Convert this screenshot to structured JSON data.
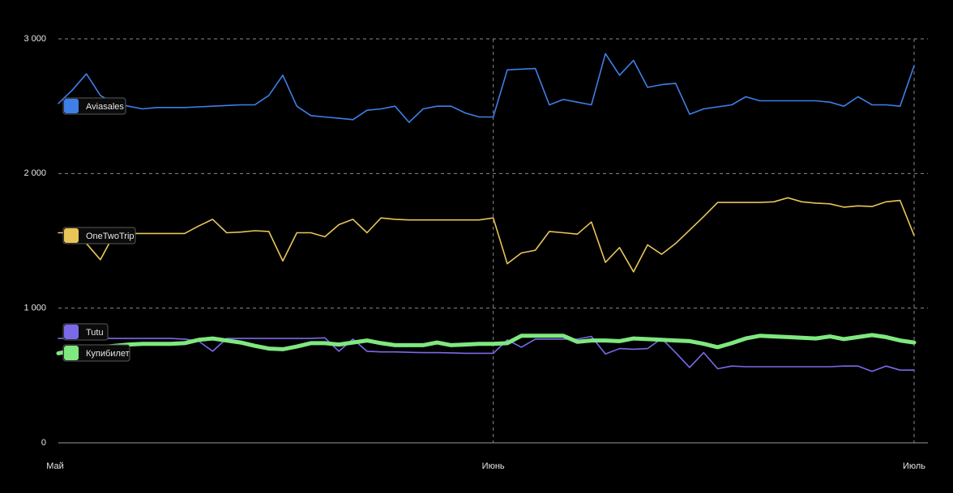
{
  "chart_data": {
    "type": "line",
    "x": [
      0,
      1,
      2,
      3,
      4,
      5,
      6,
      7,
      8,
      9,
      10,
      11,
      12,
      13,
      14,
      15,
      16,
      17,
      18,
      19,
      20,
      21,
      22,
      23,
      24,
      25,
      26,
      27,
      28,
      29,
      30,
      31,
      32,
      33,
      34,
      35,
      36,
      37,
      38,
      39,
      40,
      41,
      42,
      43,
      44,
      45,
      46,
      47,
      48,
      49,
      50,
      51,
      52,
      53,
      54,
      55,
      56,
      57,
      58,
      59,
      60,
      61
    ],
    "xlim": [
      0,
      61
    ],
    "xticks": [
      {
        "value": 0,
        "label": "Май"
      },
      {
        "value": 31,
        "label": "Июнь"
      },
      {
        "value": 61,
        "label": "Июль"
      }
    ],
    "ylim": [
      0,
      3000
    ],
    "yticks": [
      {
        "value": 0,
        "label": "0"
      },
      {
        "value": 1000,
        "label": "1 000"
      },
      {
        "value": 2000,
        "label": "2 000"
      },
      {
        "value": 3000,
        "label": "3 000"
      }
    ],
    "grid": true,
    "series": [
      {
        "name": "Aviasales",
        "color": "#3f7fe8",
        "values": [
          2520,
          2620,
          2740,
          2580,
          2520,
          2500,
          2480,
          2490,
          2490,
          2490,
          2495,
          2500,
          2505,
          2510,
          2510,
          2580,
          2730,
          2500,
          2430,
          2420,
          2410,
          2400,
          2470,
          2480,
          2500,
          2380,
          2480,
          2500,
          2500,
          2450,
          2420,
          2420,
          2770,
          2775,
          2780,
          2510,
          2550,
          2530,
          2510,
          2890,
          2730,
          2840,
          2640,
          2660,
          2670,
          2440,
          2480,
          2495,
          2510,
          2570,
          2540,
          2540,
          2540,
          2540,
          2540,
          2530,
          2500,
          2570,
          2510,
          2510,
          2500,
          2800
        ]
      },
      {
        "name": "OneTwoTrip",
        "color": "#e8c557",
        "values": [
          1560,
          1560,
          1480,
          1360,
          1555,
          1555,
          1555,
          1555,
          1555,
          1555,
          1610,
          1660,
          1560,
          1565,
          1575,
          1570,
          1350,
          1560,
          1560,
          1530,
          1620,
          1660,
          1560,
          1670,
          1660,
          1655,
          1655,
          1655,
          1655,
          1655,
          1655,
          1670,
          1330,
          1410,
          1430,
          1570,
          1560,
          1550,
          1640,
          1340,
          1450,
          1270,
          1470,
          1400,
          1480,
          1580,
          1680,
          1785,
          1785,
          1785,
          1785,
          1790,
          1820,
          1790,
          1780,
          1775,
          1750,
          1760,
          1755,
          1790,
          1800,
          1540
        ]
      },
      {
        "name": "Tutu",
        "color": "#7a6ae8",
        "values": [
          775,
          775,
          775,
          775,
          775,
          775,
          775,
          775,
          775,
          770,
          755,
          680,
          775,
          775,
          775,
          775,
          775,
          775,
          775,
          780,
          680,
          770,
          680,
          675,
          675,
          672,
          670,
          670,
          668,
          665,
          665,
          665,
          765,
          710,
          770,
          770,
          770,
          770,
          790,
          660,
          700,
          695,
          700,
          775,
          670,
          560,
          670,
          550,
          570,
          565,
          565,
          565,
          565,
          565,
          565,
          565,
          570,
          570,
          530,
          570,
          540,
          540
        ]
      },
      {
        "name": "Купибилет",
        "color": "#7fe87f",
        "values": [
          665,
          685,
          700,
          710,
          720,
          730,
          735,
          735,
          735,
          740,
          765,
          775,
          760,
          745,
          720,
          700,
          695,
          715,
          740,
          740,
          730,
          745,
          760,
          740,
          725,
          725,
          725,
          745,
          725,
          730,
          735,
          735,
          740,
          795,
          795,
          795,
          795,
          750,
          760,
          760,
          755,
          775,
          770,
          765,
          760,
          755,
          735,
          710,
          740,
          775,
          795,
          790,
          785,
          780,
          775,
          790,
          770,
          785,
          800,
          785,
          760,
          745
        ]
      }
    ]
  }
}
